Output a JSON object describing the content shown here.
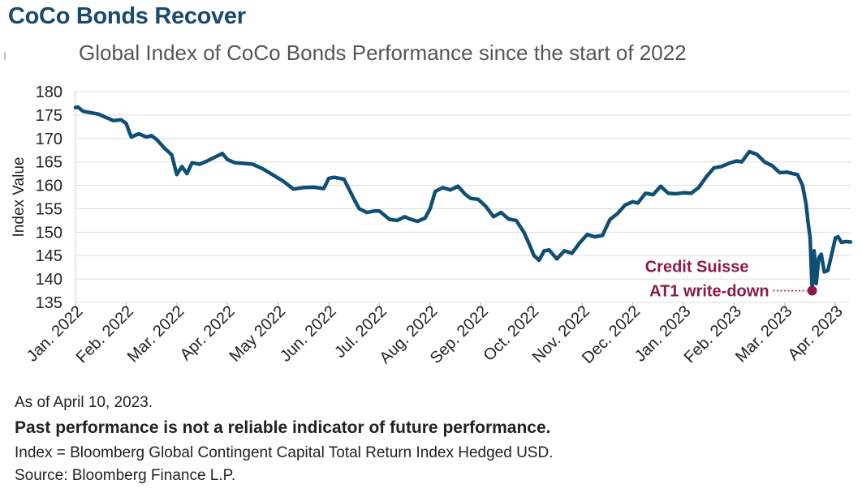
{
  "title": "CoCo Bonds Recover",
  "subtitle": "Global Index of CoCo Bonds Performance since the start of 2022",
  "footnotes": {
    "as_of": "As of April 10, 2023.",
    "disclaimer": "Past performance is not a reliable indicator of future performance.",
    "index": "Index = Bloomberg Global Contingent Capital Total Return Index Hedged USD.",
    "source": "Source: Bloomberg Finance L.P."
  },
  "colors": {
    "line": "#0e4f73",
    "annotation": "#8b1a4a",
    "grid": "#dcdcdc"
  },
  "chart_data": {
    "type": "line",
    "title": "Global Index of CoCo Bonds Performance since the start of 2022",
    "ylabel": "Index Value",
    "xlabel": "",
    "ylim": [
      135,
      180
    ],
    "yticks": [
      135,
      140,
      145,
      150,
      155,
      160,
      165,
      170,
      175,
      180
    ],
    "xlim": [
      0,
      15.3
    ],
    "x_ticks": [
      {
        "x": 0,
        "label": "Jan. 2022"
      },
      {
        "x": 1,
        "label": "Feb. 2022"
      },
      {
        "x": 2,
        "label": "Mar. 2022"
      },
      {
        "x": 3,
        "label": "Apr. 2022"
      },
      {
        "x": 4,
        "label": "May 2022"
      },
      {
        "x": 5,
        "label": "Jun. 2022"
      },
      {
        "x": 6,
        "label": "Jul. 2022"
      },
      {
        "x": 7,
        "label": "Aug. 2022"
      },
      {
        "x": 8,
        "label": "Sep. 2022"
      },
      {
        "x": 9,
        "label": "Oct. 2022"
      },
      {
        "x": 10,
        "label": "Nov. 2022"
      },
      {
        "x": 11,
        "label": "Dec. 2022"
      },
      {
        "x": 12,
        "label": "Jan. 2023"
      },
      {
        "x": 13,
        "label": "Feb. 2023"
      },
      {
        "x": 14,
        "label": "Mar. 2023"
      },
      {
        "x": 15,
        "label": "Apr. 2023"
      }
    ],
    "grid": true,
    "series": [
      {
        "name": "Bloomberg Global Contingent Capital Total Return Index Hedged USD",
        "x": [
          0,
          0.05,
          0.15,
          0.3,
          0.45,
          0.6,
          0.75,
          0.9,
          1.0,
          1.1,
          1.25,
          1.4,
          1.5,
          1.6,
          1.75,
          1.9,
          2.0,
          2.1,
          2.2,
          2.3,
          2.45,
          2.6,
          2.75,
          2.9,
          3.0,
          3.15,
          3.3,
          3.5,
          3.7,
          3.9,
          4.1,
          4.3,
          4.5,
          4.7,
          4.9,
          5.0,
          5.1,
          5.3,
          5.5,
          5.6,
          5.75,
          5.9,
          6.0,
          6.2,
          6.35,
          6.5,
          6.6,
          6.75,
          6.9,
          7.0,
          7.1,
          7.25,
          7.4,
          7.55,
          7.7,
          7.8,
          7.95,
          8.1,
          8.25,
          8.4,
          8.55,
          8.7,
          8.85,
          8.95,
          9.05,
          9.15,
          9.25,
          9.35,
          9.5,
          9.65,
          9.8,
          9.95,
          10.1,
          10.25,
          10.4,
          10.55,
          10.7,
          10.85,
          11.0,
          11.1,
          11.25,
          11.4,
          11.55,
          11.7,
          11.85,
          12.0,
          12.15,
          12.3,
          12.45,
          12.6,
          12.75,
          12.9,
          13.05,
          13.15,
          13.3,
          13.45,
          13.6,
          13.75,
          13.9,
          14.05,
          14.15,
          14.25,
          14.35,
          14.42,
          14.46,
          14.5,
          14.54,
          14.58,
          14.62,
          14.67,
          14.72,
          14.78,
          14.85,
          14.92,
          15.0,
          15.05,
          15.12,
          15.2,
          15.3
        ],
        "values": [
          176.6,
          176.7,
          175.8,
          175.5,
          175.2,
          174.5,
          173.8,
          174.0,
          173.2,
          170.3,
          171.0,
          170.3,
          170.6,
          169.8,
          168.0,
          166.5,
          162.3,
          164.0,
          162.5,
          164.8,
          164.5,
          165.2,
          166.0,
          166.8,
          165.5,
          164.8,
          164.7,
          164.5,
          163.5,
          162.2,
          160.9,
          159.2,
          159.5,
          159.6,
          159.3,
          161.5,
          161.7,
          161.3,
          157.0,
          155.0,
          154.2,
          154.5,
          154.5,
          152.7,
          152.5,
          153.3,
          152.8,
          152.3,
          153.0,
          155.0,
          158.7,
          159.5,
          159.0,
          159.8,
          158.0,
          157.2,
          157.0,
          155.5,
          153.3,
          154.2,
          152.8,
          152.5,
          150.0,
          147.6,
          145.0,
          144.0,
          146.0,
          146.2,
          144.3,
          146.0,
          145.5,
          147.7,
          149.5,
          149.0,
          149.3,
          152.7,
          154.0,
          155.8,
          156.5,
          156.2,
          158.3,
          158.0,
          159.8,
          158.3,
          158.2,
          158.4,
          158.3,
          159.5,
          161.8,
          163.7,
          164.0,
          164.7,
          165.2,
          165.0,
          167.2,
          166.6,
          165.0,
          164.2,
          162.7,
          162.8,
          162.5,
          162.3,
          160.0,
          156.0,
          152.0,
          148.8,
          137.5,
          146.0,
          139.0,
          144.5,
          145.3,
          141.5,
          141.8,
          145.0,
          148.8,
          149.0,
          147.8,
          148.0,
          147.9
        ]
      }
    ],
    "annotations": [
      {
        "text": [
          "Credit Suisse",
          "AT1 write-down"
        ],
        "x": 14.54,
        "y": 137.5,
        "type": "point-marker"
      }
    ]
  }
}
